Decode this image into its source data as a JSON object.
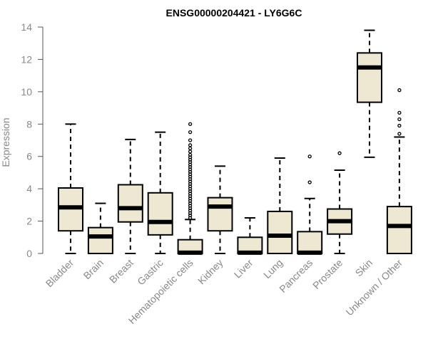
{
  "chart_data": {
    "type": "boxplot",
    "title": "ENSG00000204421 - LY6G6C",
    "ylabel": "Expression",
    "xlabel": "",
    "ylim": [
      0,
      14
    ],
    "yticks": [
      0,
      2,
      4,
      6,
      8,
      10,
      12,
      14
    ],
    "box_color": "#EEE8D2",
    "grid": false,
    "categories": [
      "Bladder",
      "Brain",
      "Breast",
      "Gastric",
      "Hematopoietic cells",
      "Kidney",
      "Liver",
      "Lung",
      "Pancreas",
      "Prostate",
      "Skin",
      "Unknown / Other"
    ],
    "boxes": [
      {
        "min": 0,
        "q1": 1.4,
        "median": 2.85,
        "q3": 4.05,
        "max": 8.0,
        "outliers": []
      },
      {
        "min": 0,
        "q1": 0,
        "median": 1.05,
        "q3": 1.6,
        "max": 3.1,
        "outliers": []
      },
      {
        "min": 0,
        "q1": 1.95,
        "median": 2.8,
        "q3": 4.25,
        "max": 7.05,
        "outliers": []
      },
      {
        "min": 0,
        "q1": 1.15,
        "median": 1.95,
        "q3": 3.75,
        "max": 7.5,
        "outliers": []
      },
      {
        "min": 0,
        "q1": 0,
        "median": 0.05,
        "q3": 0.85,
        "max": 2.1,
        "outliers": [
          2.2,
          2.35,
          2.5,
          2.65,
          2.8,
          2.95,
          3.1,
          3.25,
          3.4,
          3.55,
          3.7,
          3.85,
          4.0,
          4.15,
          4.3,
          4.45,
          4.6,
          4.75,
          4.9,
          5.05,
          5.2,
          5.35,
          5.5,
          5.65,
          5.8,
          5.95,
          6.1,
          6.3,
          6.5,
          6.7,
          7.0,
          7.5,
          8.0
        ]
      },
      {
        "min": 0,
        "q1": 1.4,
        "median": 2.9,
        "q3": 3.45,
        "max": 5.4,
        "outliers": []
      },
      {
        "min": 0,
        "q1": 0,
        "median": 0.05,
        "q3": 1.0,
        "max": 2.2,
        "outliers": []
      },
      {
        "min": 0,
        "q1": 0,
        "median": 1.1,
        "q3": 2.6,
        "max": 5.9,
        "outliers": []
      },
      {
        "min": 0,
        "q1": 0,
        "median": 0.05,
        "q3": 1.35,
        "max": 3.4,
        "outliers": [
          4.4,
          6.0
        ]
      },
      {
        "min": 0,
        "q1": 1.2,
        "median": 2.0,
        "q3": 2.75,
        "max": 5.15,
        "outliers": [
          6.2
        ]
      },
      {
        "min": 5.95,
        "q1": 9.35,
        "median": 11.5,
        "q3": 12.4,
        "max": 13.8,
        "outliers": []
      },
      {
        "min": 0,
        "q1": 0,
        "median": 1.7,
        "q3": 2.9,
        "max": 7.2,
        "outliers": [
          7.4,
          7.9,
          8.3,
          8.7,
          10.1
        ]
      }
    ]
  }
}
